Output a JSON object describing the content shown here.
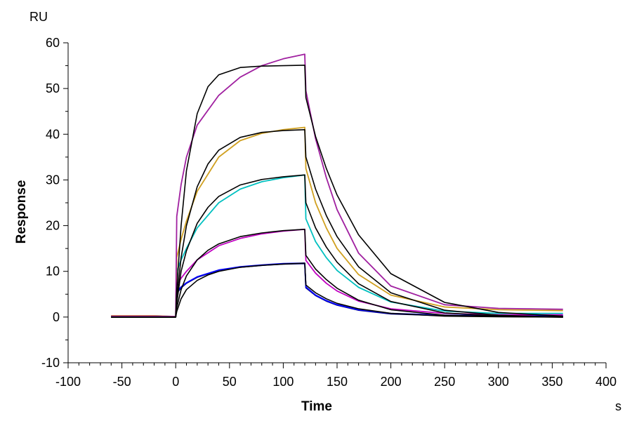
{
  "chart_data": {
    "type": "line",
    "xlabel": "Time",
    "ylabel": "Response",
    "xunit": "s",
    "yunit": "RU",
    "xlim": [
      -100,
      400
    ],
    "ylim": [
      -10,
      60
    ],
    "xticks": [
      -100,
      -50,
      0,
      50,
      100,
      150,
      200,
      250,
      300,
      350,
      400
    ],
    "yticks": [
      -10,
      0,
      10,
      20,
      30,
      40,
      50,
      60
    ],
    "grid": false,
    "association_end": 120,
    "series": [
      {
        "color": "#000080",
        "values": [
          [
            -60,
            0.1
          ],
          [
            -20,
            0.1
          ],
          [
            0,
            0
          ],
          [
            1,
            5.2
          ],
          [
            5,
            6.4
          ],
          [
            10,
            7.4
          ],
          [
            20,
            8.7
          ],
          [
            40,
            10.2
          ],
          [
            60,
            10.9
          ],
          [
            80,
            11.3
          ],
          [
            100,
            11.6
          ],
          [
            120,
            11.7
          ],
          [
            121,
            6.4
          ],
          [
            130,
            4.7
          ],
          [
            140,
            3.5
          ],
          [
            150,
            2.6
          ],
          [
            170,
            1.5
          ],
          [
            200,
            0.7
          ],
          [
            250,
            0.3
          ],
          [
            300,
            0.2
          ],
          [
            360,
            0.2
          ]
        ]
      },
      {
        "color": "#0000ff",
        "values": [
          [
            -60,
            0.2
          ],
          [
            -20,
            0.2
          ],
          [
            0,
            0.1
          ],
          [
            1,
            5.5
          ],
          [
            5,
            6.6
          ],
          [
            10,
            7.5
          ],
          [
            20,
            8.8
          ],
          [
            40,
            10.3
          ],
          [
            60,
            11.0
          ],
          [
            80,
            11.4
          ],
          [
            100,
            11.7
          ],
          [
            120,
            11.8
          ],
          [
            121,
            6.6
          ],
          [
            130,
            4.8
          ],
          [
            140,
            3.6
          ],
          [
            150,
            2.7
          ],
          [
            170,
            1.6
          ],
          [
            200,
            0.8
          ],
          [
            250,
            0.4
          ],
          [
            300,
            0.3
          ],
          [
            360,
            0.3
          ]
        ]
      },
      {
        "color": "#c000c0",
        "values": [
          [
            -60,
            0.2
          ],
          [
            -20,
            0.2
          ],
          [
            0,
            0.1
          ],
          [
            1,
            7
          ],
          [
            5,
            8.5
          ],
          [
            10,
            10
          ],
          [
            20,
            12.5
          ],
          [
            40,
            15.6
          ],
          [
            60,
            17.2
          ],
          [
            80,
            18.2
          ],
          [
            100,
            18.8
          ],
          [
            120,
            19.2
          ],
          [
            121,
            12.4
          ],
          [
            130,
            9.6
          ],
          [
            140,
            7.4
          ],
          [
            150,
            5.7
          ],
          [
            170,
            3.5
          ],
          [
            200,
            1.8
          ],
          [
            250,
            0.8
          ],
          [
            300,
            0.5
          ],
          [
            360,
            0.5
          ]
        ]
      },
      {
        "color": "#00c0c0",
        "values": [
          [
            -60,
            0.3
          ],
          [
            -20,
            0.3
          ],
          [
            0,
            0.1
          ],
          [
            1,
            10
          ],
          [
            5,
            12.5
          ],
          [
            10,
            15
          ],
          [
            20,
            19.5
          ],
          [
            40,
            25
          ],
          [
            60,
            28
          ],
          [
            80,
            29.6
          ],
          [
            100,
            30.5
          ],
          [
            120,
            31.1
          ],
          [
            121,
            21.5
          ],
          [
            130,
            16.5
          ],
          [
            140,
            13
          ],
          [
            150,
            10.2
          ],
          [
            170,
            6.5
          ],
          [
            200,
            3.3
          ],
          [
            250,
            1.3
          ],
          [
            300,
            0.8
          ],
          [
            360,
            0.8
          ]
        ]
      },
      {
        "color": "#d0a020",
        "values": [
          [
            -60,
            0.3
          ],
          [
            -20,
            0.3
          ],
          [
            0,
            0.1
          ],
          [
            1,
            13
          ],
          [
            5,
            17
          ],
          [
            10,
            21
          ],
          [
            20,
            27.5
          ],
          [
            40,
            35
          ],
          [
            60,
            38.6
          ],
          [
            80,
            40.2
          ],
          [
            100,
            41.0
          ],
          [
            120,
            41.5
          ],
          [
            121,
            32.5
          ],
          [
            130,
            25
          ],
          [
            140,
            19.5
          ],
          [
            150,
            15
          ],
          [
            170,
            9.3
          ],
          [
            200,
            4.8
          ],
          [
            250,
            2.2
          ],
          [
            300,
            1.6
          ],
          [
            360,
            1.4
          ]
        ]
      },
      {
        "color": "#a020a0",
        "values": [
          [
            -60,
            0.2
          ],
          [
            -20,
            0.2
          ],
          [
            0,
            0.1
          ],
          [
            1,
            22
          ],
          [
            5,
            29
          ],
          [
            10,
            35
          ],
          [
            20,
            42
          ],
          [
            40,
            48.5
          ],
          [
            60,
            52.5
          ],
          [
            80,
            55
          ],
          [
            100,
            56.5
          ],
          [
            120,
            57.5
          ],
          [
            121,
            49.5
          ],
          [
            130,
            39
          ],
          [
            140,
            30.5
          ],
          [
            150,
            23.5
          ],
          [
            170,
            14
          ],
          [
            200,
            6.8
          ],
          [
            250,
            2.7
          ],
          [
            300,
            1.9
          ],
          [
            360,
            1.7
          ]
        ]
      },
      {
        "color": "#000000",
        "values": [
          [
            -60,
            0
          ],
          [
            0,
            0
          ],
          [
            1,
            1.2
          ],
          [
            5,
            4
          ],
          [
            10,
            6
          ],
          [
            20,
            8
          ],
          [
            30,
            9.2
          ],
          [
            40,
            10
          ],
          [
            60,
            10.9
          ],
          [
            80,
            11.3
          ],
          [
            100,
            11.6
          ],
          [
            120,
            11.8
          ],
          [
            121,
            7
          ],
          [
            130,
            5.3
          ],
          [
            140,
            4
          ],
          [
            150,
            3
          ],
          [
            170,
            1.8
          ],
          [
            200,
            0.8
          ],
          [
            250,
            0.2
          ],
          [
            300,
            0.05
          ],
          [
            360,
            0
          ]
        ]
      },
      {
        "color": "#000000",
        "values": [
          [
            -60,
            0
          ],
          [
            0,
            0
          ],
          [
            1,
            2
          ],
          [
            5,
            6
          ],
          [
            10,
            9
          ],
          [
            20,
            12.5
          ],
          [
            30,
            14.6
          ],
          [
            40,
            16
          ],
          [
            60,
            17.6
          ],
          [
            80,
            18.4
          ],
          [
            100,
            18.9
          ],
          [
            120,
            19.2
          ],
          [
            121,
            13.5
          ],
          [
            130,
            10.5
          ],
          [
            140,
            8.2
          ],
          [
            150,
            6.3
          ],
          [
            170,
            3.7
          ],
          [
            200,
            1.6
          ],
          [
            250,
            0.4
          ],
          [
            300,
            0.1
          ],
          [
            360,
            0
          ]
        ]
      },
      {
        "color": "#000000",
        "values": [
          [
            -60,
            0
          ],
          [
            0,
            0
          ],
          [
            1,
            3
          ],
          [
            5,
            10
          ],
          [
            10,
            14.5
          ],
          [
            20,
            20.5
          ],
          [
            30,
            24
          ],
          [
            40,
            26.4
          ],
          [
            60,
            28.9
          ],
          [
            80,
            30.1
          ],
          [
            100,
            30.7
          ],
          [
            120,
            31.1
          ],
          [
            121,
            25
          ],
          [
            130,
            19.5
          ],
          [
            140,
            15.3
          ],
          [
            150,
            12
          ],
          [
            170,
            7.3
          ],
          [
            200,
            3.4
          ],
          [
            250,
            0.9
          ],
          [
            300,
            0.2
          ],
          [
            360,
            0
          ]
        ]
      },
      {
        "color": "#000000",
        "values": [
          [
            -60,
            0
          ],
          [
            0,
            0
          ],
          [
            1,
            4
          ],
          [
            5,
            13
          ],
          [
            10,
            20
          ],
          [
            20,
            28.5
          ],
          [
            30,
            33.5
          ],
          [
            40,
            36.5
          ],
          [
            60,
            39.3
          ],
          [
            80,
            40.4
          ],
          [
            100,
            40.8
          ],
          [
            120,
            41
          ],
          [
            121,
            35
          ],
          [
            130,
            28
          ],
          [
            140,
            22.2
          ],
          [
            150,
            17.6
          ],
          [
            170,
            11
          ],
          [
            200,
            5.3
          ],
          [
            250,
            1.5
          ],
          [
            300,
            0.4
          ],
          [
            360,
            0
          ]
        ]
      },
      {
        "color": "#000000",
        "values": [
          [
            -60,
            0
          ],
          [
            0,
            0
          ],
          [
            1,
            6
          ],
          [
            5,
            20
          ],
          [
            10,
            32
          ],
          [
            20,
            44.5
          ],
          [
            30,
            50.4
          ],
          [
            40,
            53
          ],
          [
            60,
            54.6
          ],
          [
            80,
            54.9
          ],
          [
            100,
            55
          ],
          [
            120,
            55.1
          ],
          [
            121,
            48
          ],
          [
            130,
            39.5
          ],
          [
            140,
            32.5
          ],
          [
            150,
            26.7
          ],
          [
            170,
            18
          ],
          [
            200,
            9.5
          ],
          [
            250,
            3.2
          ],
          [
            300,
            1
          ],
          [
            360,
            0.2
          ]
        ]
      }
    ]
  }
}
